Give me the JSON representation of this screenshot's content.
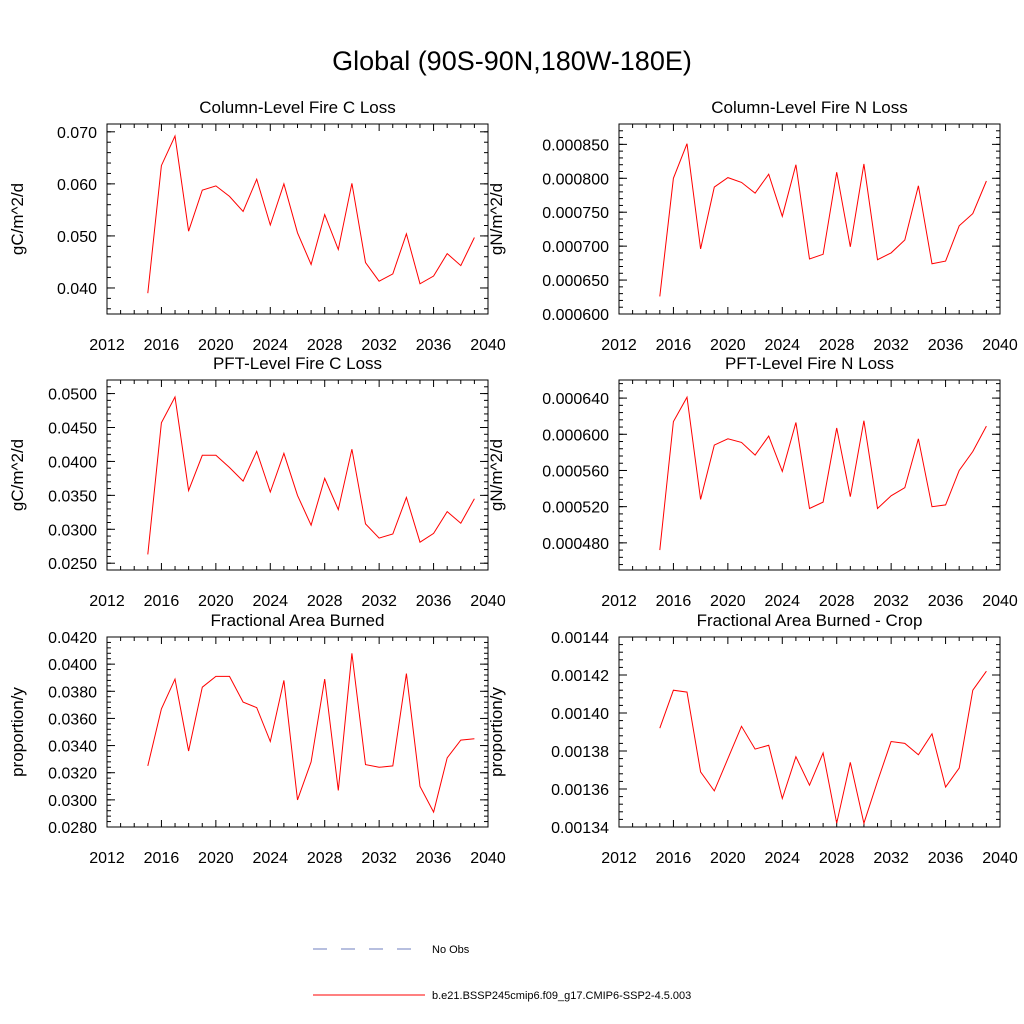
{
  "title": "Global (90S-90N,180W-180E)",
  "colors": {
    "model_line": "#ff0000",
    "obs_line": "#6f7fbf",
    "axis": "#000000"
  },
  "legend": {
    "obs_label": "No Obs",
    "model_label": "b.e21.BSSP245cmip6.f09_g17.CMIP6-SSP2-4.5.003"
  },
  "chart_data": [
    {
      "type": "line",
      "title": "Column-Level Fire C Loss",
      "ylabel": "gC/m^2/d",
      "xlim": [
        2012,
        2040
      ],
      "xticks": [
        "2012",
        "2016",
        "2020",
        "2024",
        "2028",
        "2032",
        "2036",
        "2040"
      ],
      "ylim": [
        0.035,
        0.0715
      ],
      "yticks": [
        "0.040",
        "0.050",
        "0.060",
        "0.070"
      ],
      "ytick_values": [
        0.04,
        0.05,
        0.06,
        0.07
      ],
      "x": [
        2015,
        2016,
        2017,
        2018,
        2019,
        2020,
        2021,
        2022,
        2023,
        2024,
        2025,
        2026,
        2027,
        2028,
        2029,
        2030,
        2031,
        2032,
        2033,
        2034,
        2035,
        2036,
        2037,
        2038,
        2039
      ],
      "series": [
        {
          "name": "b.e21.BSSP245cmip6.f09_g17.CMIP6-SSP2-4.5.003",
          "values": [
            0.039,
            0.0635,
            0.0692,
            0.0509,
            0.0588,
            0.0596,
            0.0576,
            0.0547,
            0.0609,
            0.0521,
            0.06,
            0.0506,
            0.0445,
            0.0541,
            0.0474,
            0.0601,
            0.0449,
            0.0413,
            0.0427,
            0.0504,
            0.0408,
            0.0423,
            0.0466,
            0.0443,
            0.0497
          ]
        }
      ]
    },
    {
      "type": "line",
      "title": "Column-Level Fire N Loss",
      "ylabel": "gN/m^2/d",
      "xlim": [
        2012,
        2040
      ],
      "xticks": [
        "2012",
        "2016",
        "2020",
        "2024",
        "2028",
        "2032",
        "2036",
        "2040"
      ],
      "ylim": [
        0.0006,
        0.00088
      ],
      "yticks": [
        "0.000600",
        "0.000650",
        "0.000700",
        "0.000750",
        "0.000800",
        "0.000850"
      ],
      "ytick_values": [
        0.0006,
        0.00065,
        0.0007,
        0.00075,
        0.0008,
        0.00085
      ],
      "x": [
        2015,
        2016,
        2017,
        2018,
        2019,
        2020,
        2021,
        2022,
        2023,
        2024,
        2025,
        2026,
        2027,
        2028,
        2029,
        2030,
        2031,
        2032,
        2033,
        2034,
        2035,
        2036,
        2037,
        2038,
        2039
      ],
      "series": [
        {
          "name": "b.e21.BSSP245cmip6.f09_g17.CMIP6-SSP2-4.5.003",
          "values": [
            0.000626,
            0.0008,
            0.000851,
            0.000696,
            0.000787,
            0.000801,
            0.000794,
            0.000778,
            0.000806,
            0.000744,
            0.00082,
            0.000681,
            0.000688,
            0.000809,
            0.000699,
            0.000821,
            0.00068,
            0.00069,
            0.000709,
            0.000789,
            0.000674,
            0.000678,
            0.00073,
            0.000748,
            0.000796
          ]
        }
      ]
    },
    {
      "type": "line",
      "title": "PFT-Level Fire C Loss",
      "ylabel": "gC/m^2/d",
      "xlim": [
        2012,
        2040
      ],
      "xticks": [
        "2012",
        "2016",
        "2020",
        "2024",
        "2028",
        "2032",
        "2036",
        "2040"
      ],
      "ylim": [
        0.024,
        0.052
      ],
      "yticks": [
        "0.0250",
        "0.0300",
        "0.0350",
        "0.0400",
        "0.0450",
        "0.0500"
      ],
      "ytick_values": [
        0.025,
        0.03,
        0.035,
        0.04,
        0.045,
        0.05
      ],
      "x": [
        2015,
        2016,
        2017,
        2018,
        2019,
        2020,
        2021,
        2022,
        2023,
        2024,
        2025,
        2026,
        2027,
        2028,
        2029,
        2030,
        2031,
        2032,
        2033,
        2034,
        2035,
        2036,
        2037,
        2038,
        2039
      ],
      "series": [
        {
          "name": "b.e21.BSSP245cmip6.f09_g17.CMIP6-SSP2-4.5.003",
          "values": [
            0.0263,
            0.0457,
            0.0495,
            0.0357,
            0.0409,
            0.0409,
            0.0391,
            0.0371,
            0.0415,
            0.0355,
            0.0412,
            0.035,
            0.0306,
            0.0375,
            0.0329,
            0.0418,
            0.0308,
            0.0287,
            0.0293,
            0.0347,
            0.0281,
            0.0294,
            0.0326,
            0.0309,
            0.0345
          ]
        }
      ]
    },
    {
      "type": "line",
      "title": "PFT-Level Fire N Loss",
      "ylabel": "gN/m^2/d",
      "xlim": [
        2012,
        2040
      ],
      "xticks": [
        "2012",
        "2016",
        "2020",
        "2024",
        "2028",
        "2032",
        "2036",
        "2040"
      ],
      "ylim": [
        0.00045,
        0.00066
      ],
      "yticks": [
        "0.000480",
        "0.000520",
        "0.000560",
        "0.000600",
        "0.000640"
      ],
      "ytick_values": [
        0.00048,
        0.00052,
        0.00056,
        0.0006,
        0.00064
      ],
      "x": [
        2015,
        2016,
        2017,
        2018,
        2019,
        2020,
        2021,
        2022,
        2023,
        2024,
        2025,
        2026,
        2027,
        2028,
        2029,
        2030,
        2031,
        2032,
        2033,
        2034,
        2035,
        2036,
        2037,
        2038,
        2039
      ],
      "series": [
        {
          "name": "b.e21.BSSP245cmip6.f09_g17.CMIP6-SSP2-4.5.003",
          "values": [
            0.000472,
            0.000614,
            0.000641,
            0.000528,
            0.000588,
            0.000595,
            0.000591,
            0.000577,
            0.000598,
            0.000559,
            0.000613,
            0.000518,
            0.000525,
            0.000607,
            0.000531,
            0.000615,
            0.000518,
            0.000532,
            0.000541,
            0.000595,
            0.00052,
            0.000522,
            0.00056,
            0.000581,
            0.000609
          ]
        }
      ]
    },
    {
      "type": "line",
      "title": "Fractional Area Burned",
      "ylabel": "proportion/y",
      "xlim": [
        2012,
        2040
      ],
      "xticks": [
        "2012",
        "2016",
        "2020",
        "2024",
        "2028",
        "2032",
        "2036",
        "2040"
      ],
      "ylim": [
        0.028,
        0.042
      ],
      "yticks": [
        "0.0280",
        "0.0300",
        "0.0320",
        "0.0340",
        "0.0360",
        "0.0380",
        "0.0400",
        "0.0420"
      ],
      "ytick_values": [
        0.028,
        0.03,
        0.032,
        0.034,
        0.036,
        0.038,
        0.04,
        0.042
      ],
      "x": [
        2015,
        2016,
        2017,
        2018,
        2019,
        2020,
        2021,
        2022,
        2023,
        2024,
        2025,
        2026,
        2027,
        2028,
        2029,
        2030,
        2031,
        2032,
        2033,
        2034,
        2035,
        2036,
        2037,
        2038,
        2039
      ],
      "series": [
        {
          "name": "b.e21.BSSP245cmip6.f09_g17.CMIP6-SSP2-4.5.003",
          "values": [
            0.0325,
            0.0367,
            0.0389,
            0.0336,
            0.0383,
            0.0391,
            0.0391,
            0.0372,
            0.0368,
            0.0343,
            0.0388,
            0.03,
            0.0328,
            0.0389,
            0.0307,
            0.0408,
            0.0326,
            0.0324,
            0.0325,
            0.0393,
            0.031,
            0.0291,
            0.0331,
            0.0344,
            0.0345
          ]
        }
      ]
    },
    {
      "type": "line",
      "title": "Fractional Area Burned - Crop",
      "ylabel": "proportion/y",
      "xlim": [
        2012,
        2040
      ],
      "xticks": [
        "2012",
        "2016",
        "2020",
        "2024",
        "2028",
        "2032",
        "2036",
        "2040"
      ],
      "ylim": [
        0.00134,
        0.00144
      ],
      "yticks": [
        "0.00134",
        "0.00136",
        "0.00138",
        "0.00140",
        "0.00142",
        "0.00144"
      ],
      "ytick_values": [
        0.00134,
        0.00136,
        0.00138,
        0.0014,
        0.00142,
        0.00144
      ],
      "x": [
        2015,
        2016,
        2017,
        2018,
        2019,
        2020,
        2021,
        2022,
        2023,
        2024,
        2025,
        2026,
        2027,
        2028,
        2029,
        2030,
        2031,
        2032,
        2033,
        2034,
        2035,
        2036,
        2037,
        2038,
        2039
      ],
      "series": [
        {
          "name": "b.e21.BSSP245cmip6.f09_g17.CMIP6-SSP2-4.5.003",
          "values": [
            0.001392,
            0.001412,
            0.001411,
            0.001369,
            0.001359,
            0.001376,
            0.001393,
            0.001381,
            0.001383,
            0.001355,
            0.001377,
            0.001362,
            0.001379,
            0.001342,
            0.001374,
            0.001342,
            0.001364,
            0.001385,
            0.001384,
            0.001378,
            0.001389,
            0.001361,
            0.001371,
            0.001412,
            0.001422
          ]
        }
      ]
    }
  ]
}
